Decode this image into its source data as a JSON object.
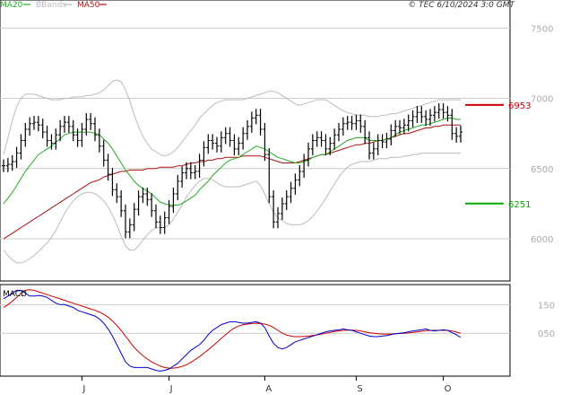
{
  "chart_data": {
    "type": "line",
    "timestamp": "© TEC 6/10/2024 3:0 GMT",
    "legend": [
      {
        "label": "MA20",
        "color": "#22aa22"
      },
      {
        "label": "BBands",
        "color": "#bbbbbb"
      },
      {
        "label": "MA50",
        "color": "#aa1111"
      }
    ],
    "price_panel": {
      "y_ticks": [
        "7500",
        "7000",
        "6500",
        "6000"
      ],
      "y_tick_values": [
        7500,
        7000,
        6500,
        6000
      ],
      "ylim": [
        5700,
        7700
      ],
      "grid": true,
      "levels": [
        {
          "label": "6953",
          "value": 6953,
          "color": "#cc0000"
        },
        {
          "label": "6251",
          "value": 6251,
          "color": "#00aa00"
        }
      ],
      "price": [
        6520,
        6530,
        6550,
        6610,
        6700,
        6780,
        6820,
        6830,
        6810,
        6760,
        6700,
        6680,
        6740,
        6800,
        6830,
        6800,
        6740,
        6700,
        6780,
        6850,
        6820,
        6740,
        6660,
        6560,
        6460,
        6350,
        6300,
        6200,
        6050,
        6100,
        6210,
        6300,
        6320,
        6280,
        6200,
        6120,
        6080,
        6150,
        6230,
        6320,
        6410,
        6470,
        6500,
        6470,
        6480,
        6560,
        6650,
        6700,
        6680,
        6660,
        6720,
        6750,
        6700,
        6640,
        6680,
        6750,
        6800,
        6860,
        6880,
        6780,
        6600,
        6300,
        6120,
        6180,
        6250,
        6300,
        6360,
        6420,
        6480,
        6560,
        6640,
        6700,
        6720,
        6700,
        6640,
        6680,
        6740,
        6780,
        6820,
        6830,
        6820,
        6840,
        6800,
        6720,
        6610,
        6640,
        6700,
        6690,
        6710,
        6770,
        6800,
        6790,
        6810,
        6840,
        6870,
        6900,
        6870,
        6850,
        6880,
        6900,
        6920,
        6900,
        6880,
        6750,
        6730,
        6760
      ],
      "ma20": [
        6250,
        6290,
        6330,
        6380,
        6430,
        6480,
        6520,
        6560,
        6600,
        6620,
        6640,
        6660,
        6690,
        6710,
        6740,
        6750,
        6760,
        6760,
        6760,
        6760,
        6760,
        6750,
        6740,
        6710,
        6680,
        6640,
        6590,
        6540,
        6490,
        6450,
        6410,
        6380,
        6360,
        6340,
        6320,
        6290,
        6260,
        6250,
        6240,
        6240,
        6240,
        6250,
        6270,
        6290,
        6310,
        6350,
        6380,
        6410,
        6450,
        6480,
        6510,
        6540,
        6560,
        6570,
        6580,
        6600,
        6620,
        6640,
        6660,
        6650,
        6640,
        6620,
        6600,
        6580,
        6570,
        6560,
        6550,
        6540,
        6540,
        6550,
        6560,
        6580,
        6590,
        6600,
        6600,
        6620,
        6640,
        6660,
        6680,
        6700,
        6710,
        6720,
        6720,
        6720,
        6700,
        6700,
        6700,
        6700,
        6710,
        6720,
        6740,
        6760,
        6770,
        6780,
        6790,
        6800,
        6810,
        6810,
        6820,
        6830,
        6840,
        6850,
        6860,
        6860,
        6850,
        6850
      ],
      "ma50": [
        6000,
        6020,
        6040,
        6060,
        6080,
        6100,
        6120,
        6140,
        6160,
        6180,
        6200,
        6220,
        6240,
        6260,
        6280,
        6300,
        6320,
        6340,
        6360,
        6380,
        6400,
        6410,
        6420,
        6440,
        6450,
        6460,
        6470,
        6480,
        6480,
        6490,
        6490,
        6490,
        6490,
        6500,
        6500,
        6500,
        6510,
        6510,
        6510,
        6510,
        6520,
        6520,
        6530,
        6540,
        6540,
        6550,
        6550,
        6560,
        6560,
        6570,
        6570,
        6580,
        6580,
        6580,
        6580,
        6590,
        6590,
        6590,
        6590,
        6590,
        6580,
        6570,
        6560,
        6550,
        6540,
        6540,
        6540,
        6540,
        6550,
        6560,
        6570,
        6580,
        6590,
        6600,
        6600,
        6610,
        6620,
        6630,
        6640,
        6650,
        6660,
        6670,
        6670,
        6680,
        6680,
        6690,
        6700,
        6700,
        6710,
        6720,
        6730,
        6740,
        6750,
        6750,
        6760,
        6770,
        6780,
        6790,
        6790,
        6800,
        6800,
        6810,
        6810,
        6810,
        6810,
        6810
      ],
      "bb_upper": [
        6600,
        6720,
        6840,
        6940,
        7000,
        7030,
        7030,
        7030,
        7020,
        7010,
        7000,
        6990,
        6990,
        6990,
        7000,
        7000,
        7010,
        7010,
        7010,
        7020,
        7020,
        7030,
        7040,
        7060,
        7090,
        7120,
        7130,
        7120,
        7060,
        6980,
        6880,
        6800,
        6730,
        6680,
        6640,
        6620,
        6600,
        6590,
        6600,
        6620,
        6650,
        6690,
        6730,
        6770,
        6810,
        6860,
        6890,
        6920,
        6950,
        6970,
        6980,
        6990,
        6990,
        6990,
        6990,
        6990,
        7000,
        7010,
        7020,
        7030,
        7040,
        7050,
        7050,
        7040,
        7020,
        7000,
        6980,
        6960,
        6950,
        6960,
        6970,
        6980,
        6990,
        6990,
        6990,
        6970,
        6950,
        6930,
        6910,
        6900,
        6890,
        6880,
        6880,
        6880,
        6870,
        6870,
        6870,
        6880,
        6880,
        6890,
        6890,
        6900,
        6910,
        6920,
        6930,
        6940,
        6950,
        6960,
        6970,
        6980,
        6990,
        6990,
        6990,
        6990,
        6990,
        6990
      ],
      "bb_lower": [
        5920,
        5880,
        5850,
        5830,
        5830,
        5840,
        5860,
        5880,
        5910,
        5940,
        5970,
        6010,
        6060,
        6120,
        6180,
        6230,
        6270,
        6300,
        6320,
        6330,
        6330,
        6320,
        6300,
        6270,
        6230,
        6170,
        6100,
        6020,
        5950,
        5920,
        5920,
        5950,
        5990,
        6030,
        6060,
        6080,
        6080,
        6080,
        6100,
        6140,
        6190,
        6240,
        6300,
        6340,
        6380,
        6410,
        6430,
        6430,
        6420,
        6400,
        6380,
        6370,
        6370,
        6370,
        6370,
        6380,
        6390,
        6400,
        6410,
        6380,
        6320,
        6250,
        6190,
        6150,
        6130,
        6110,
        6100,
        6100,
        6100,
        6110,
        6130,
        6160,
        6200,
        6240,
        6290,
        6340,
        6390,
        6440,
        6480,
        6510,
        6530,
        6540,
        6550,
        6550,
        6550,
        6560,
        6570,
        6570,
        6570,
        6580,
        6580,
        6580,
        6590,
        6590,
        6600,
        6600,
        6610,
        6610,
        6610,
        6610,
        6610,
        6610,
        6610,
        6610,
        6610,
        6610
      ]
    },
    "macd_panel": {
      "label": "MACD",
      "y_ticks": [
        "150",
        "050"
      ],
      "y_tick_values": [
        150,
        50
      ],
      "ylim": [
        -100,
        220
      ],
      "macd": [
        170,
        180,
        190,
        200,
        200,
        190,
        180,
        180,
        182,
        180,
        175,
        165,
        155,
        150,
        150,
        145,
        140,
        130,
        125,
        120,
        115,
        110,
        100,
        85,
        65,
        40,
        10,
        -20,
        -50,
        -65,
        -70,
        -70,
        -70,
        -70,
        -75,
        -80,
        -82,
        -80,
        -75,
        -65,
        -55,
        -40,
        -25,
        -10,
        0,
        10,
        25,
        45,
        60,
        70,
        80,
        85,
        90,
        90,
        88,
        85,
        85,
        88,
        90,
        85,
        70,
        40,
        15,
        0,
        -5,
        0,
        10,
        20,
        25,
        30,
        35,
        40,
        45,
        50,
        55,
        58,
        60,
        62,
        65,
        62,
        60,
        55,
        50,
        45,
        40,
        38,
        38,
        40,
        42,
        45,
        48,
        50,
        52,
        55,
        58,
        60,
        62,
        65,
        60,
        58,
        60,
        62,
        60,
        52,
        45,
        35
      ],
      "signal": [
        140,
        150,
        162,
        175,
        190,
        200,
        202,
        200,
        195,
        190,
        185,
        180,
        175,
        170,
        165,
        160,
        155,
        150,
        145,
        140,
        135,
        130,
        124,
        116,
        106,
        93,
        78,
        60,
        40,
        20,
        0,
        -15,
        -28,
        -40,
        -50,
        -58,
        -65,
        -70,
        -72,
        -72,
        -70,
        -66,
        -60,
        -52,
        -42,
        -32,
        -20,
        -8,
        5,
        18,
        32,
        45,
        58,
        68,
        75,
        80,
        82,
        84,
        85,
        84,
        82,
        78,
        70,
        60,
        50,
        44,
        40,
        38,
        38,
        39,
        40,
        42,
        44,
        47,
        50,
        53,
        56,
        58,
        60,
        61,
        61,
        60,
        58,
        55,
        52,
        50,
        48,
        47,
        47,
        47,
        48,
        49,
        50,
        51,
        53,
        55,
        57,
        59,
        60,
        60,
        60,
        60,
        60,
        58,
        54,
        50
      ]
    },
    "x_axis": {
      "ticks": [
        {
          "label": "J",
          "index": 18
        },
        {
          "label": "J",
          "index": 38
        },
        {
          "label": "A",
          "index": 60
        },
        {
          "label": "S",
          "index": 81
        },
        {
          "label": "O",
          "index": 101
        }
      ]
    }
  }
}
